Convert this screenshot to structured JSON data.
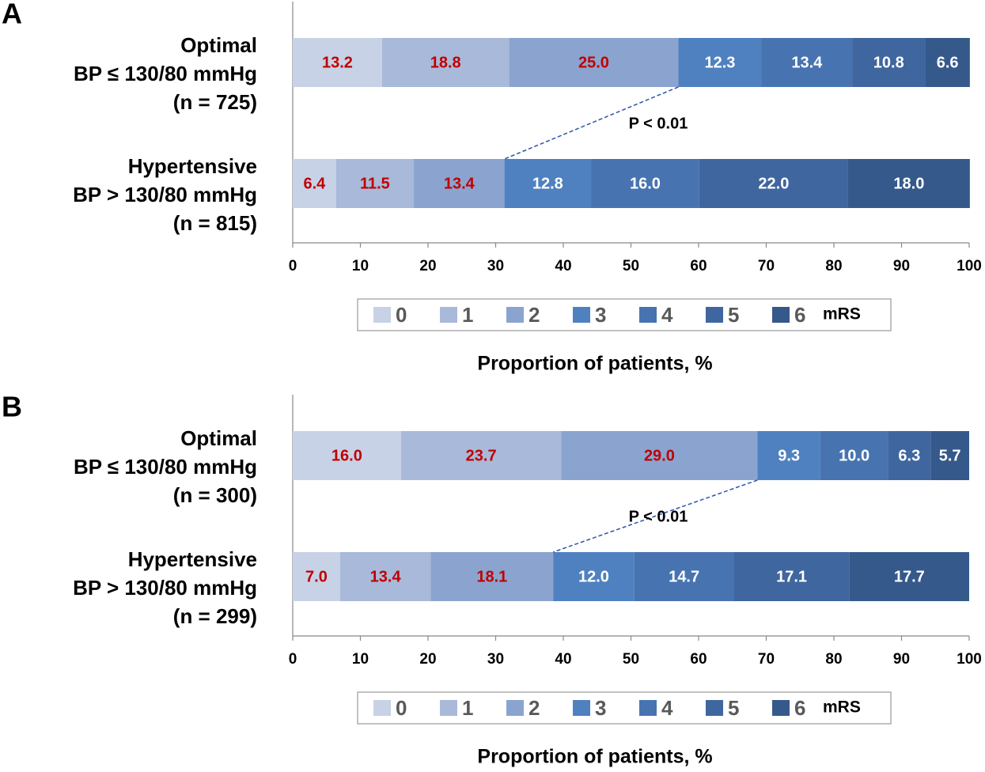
{
  "chart_data": [
    {
      "type": "bar",
      "orientation": "horizontal",
      "stacked": true,
      "panel_label": "A",
      "categories": [
        [
          "Optimal",
          "BP ≤ 130/80 mmHg",
          "(n = 725)"
        ],
        [
          "Hypertensive",
          "BP > 130/80 mmHg",
          "(n = 815)"
        ]
      ],
      "series": [
        {
          "name": "0",
          "color": "#c8d2e6",
          "label_color": "#c00000",
          "values": [
            13.2,
            6.4
          ]
        },
        {
          "name": "1",
          "color": "#a9b9d9",
          "label_color": "#c00000",
          "values": [
            18.8,
            11.5
          ]
        },
        {
          "name": "2",
          "color": "#8aa4cf",
          "label_color": "#c00000",
          "values": [
            25.0,
            13.4
          ],
          "value_labels": [
            "25.0",
            "13.4"
          ]
        },
        {
          "name": "3",
          "color": "#4f81c0",
          "label_color": "#ffffff",
          "values": [
            12.3,
            12.8
          ]
        },
        {
          "name": "4",
          "color": "#4774b1",
          "label_color": "#ffffff",
          "values": [
            13.4,
            16.0
          ],
          "value_labels": [
            "13.4",
            "16.0"
          ]
        },
        {
          "name": "5",
          "color": "#3f669f",
          "label_color": "#ffffff",
          "values": [
            10.8,
            22.0
          ],
          "value_labels": [
            "10.8",
            "22.0"
          ]
        },
        {
          "name": "6",
          "color": "#36598b",
          "label_color": "#ffffff",
          "values": [
            6.6,
            18.0
          ],
          "value_labels": [
            "6.6",
            "18.0"
          ]
        }
      ],
      "legend_title": "mRS",
      "xlabel": "Proportion of patients, %",
      "annotation": "P < 0.01",
      "xlim": [
        0,
        100
      ],
      "xticks": [
        0,
        10,
        20,
        30,
        40,
        50,
        60,
        70,
        80,
        90,
        100
      ]
    },
    {
      "type": "bar",
      "orientation": "horizontal",
      "stacked": true,
      "panel_label": "B",
      "categories": [
        [
          "Optimal",
          "BP ≤ 130/80 mmHg",
          "(n = 300)"
        ],
        [
          "Hypertensive",
          "BP > 130/80 mmHg",
          "(n = 299)"
        ]
      ],
      "series": [
        {
          "name": "0",
          "color": "#c8d2e6",
          "label_color": "#c00000",
          "values": [
            16.0,
            7.0
          ],
          "value_labels": [
            "16.0",
            "7.0"
          ]
        },
        {
          "name": "1",
          "color": "#a9b9d9",
          "label_color": "#c00000",
          "values": [
            23.7,
            13.4
          ]
        },
        {
          "name": "2",
          "color": "#8aa4cf",
          "label_color": "#c00000",
          "values": [
            29.0,
            18.1
          ],
          "value_labels": [
            "29.0",
            "18.1"
          ]
        },
        {
          "name": "3",
          "color": "#4f81c0",
          "label_color": "#ffffff",
          "values": [
            9.3,
            12.0
          ],
          "value_labels": [
            "9.3",
            "12.0"
          ]
        },
        {
          "name": "4",
          "color": "#4774b1",
          "label_color": "#ffffff",
          "values": [
            10.0,
            14.7
          ],
          "value_labels": [
            "10.0",
            "14.7"
          ]
        },
        {
          "name": "5",
          "color": "#3f669f",
          "label_color": "#ffffff",
          "values": [
            6.3,
            17.1
          ]
        },
        {
          "name": "6",
          "color": "#36598b",
          "label_color": "#ffffff",
          "values": [
            5.7,
            17.7
          ]
        }
      ],
      "legend_title": "mRS",
      "xlabel": "Proportion of patients, %",
      "annotation": "P < 0.01",
      "xlim": [
        0,
        100
      ],
      "xticks": [
        0,
        10,
        20,
        30,
        40,
        50,
        60,
        70,
        80,
        90,
        100
      ]
    }
  ]
}
